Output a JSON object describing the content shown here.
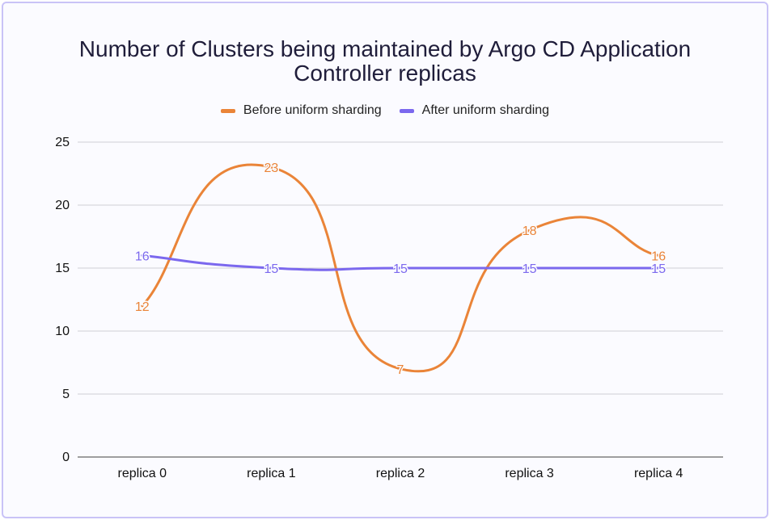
{
  "chart_data": {
    "type": "line",
    "title_line1": "Number of Clusters being maintained by Argo CD Application",
    "title_line2": "Controller replicas",
    "xlabel": "",
    "ylabel": "",
    "categories": [
      "replica 0",
      "replica 1",
      "replica 2",
      "replica 3",
      "replica 4"
    ],
    "ylim": [
      0,
      25
    ],
    "yticks": [
      "0",
      "5",
      "10",
      "15",
      "20",
      "25"
    ],
    "grid": true,
    "legend_position": "top-center",
    "series": [
      {
        "name": "Before uniform sharding",
        "color": "#ea8438",
        "values": [
          12,
          23,
          7,
          18,
          16
        ],
        "labels": [
          "12",
          "23",
          "7",
          "18",
          "16"
        ]
      },
      {
        "name": "After uniform sharding",
        "color": "#7b68ee",
        "values": [
          16,
          15,
          15,
          15,
          15
        ],
        "labels": [
          "16",
          "15",
          "15",
          "15",
          "15"
        ]
      }
    ]
  }
}
